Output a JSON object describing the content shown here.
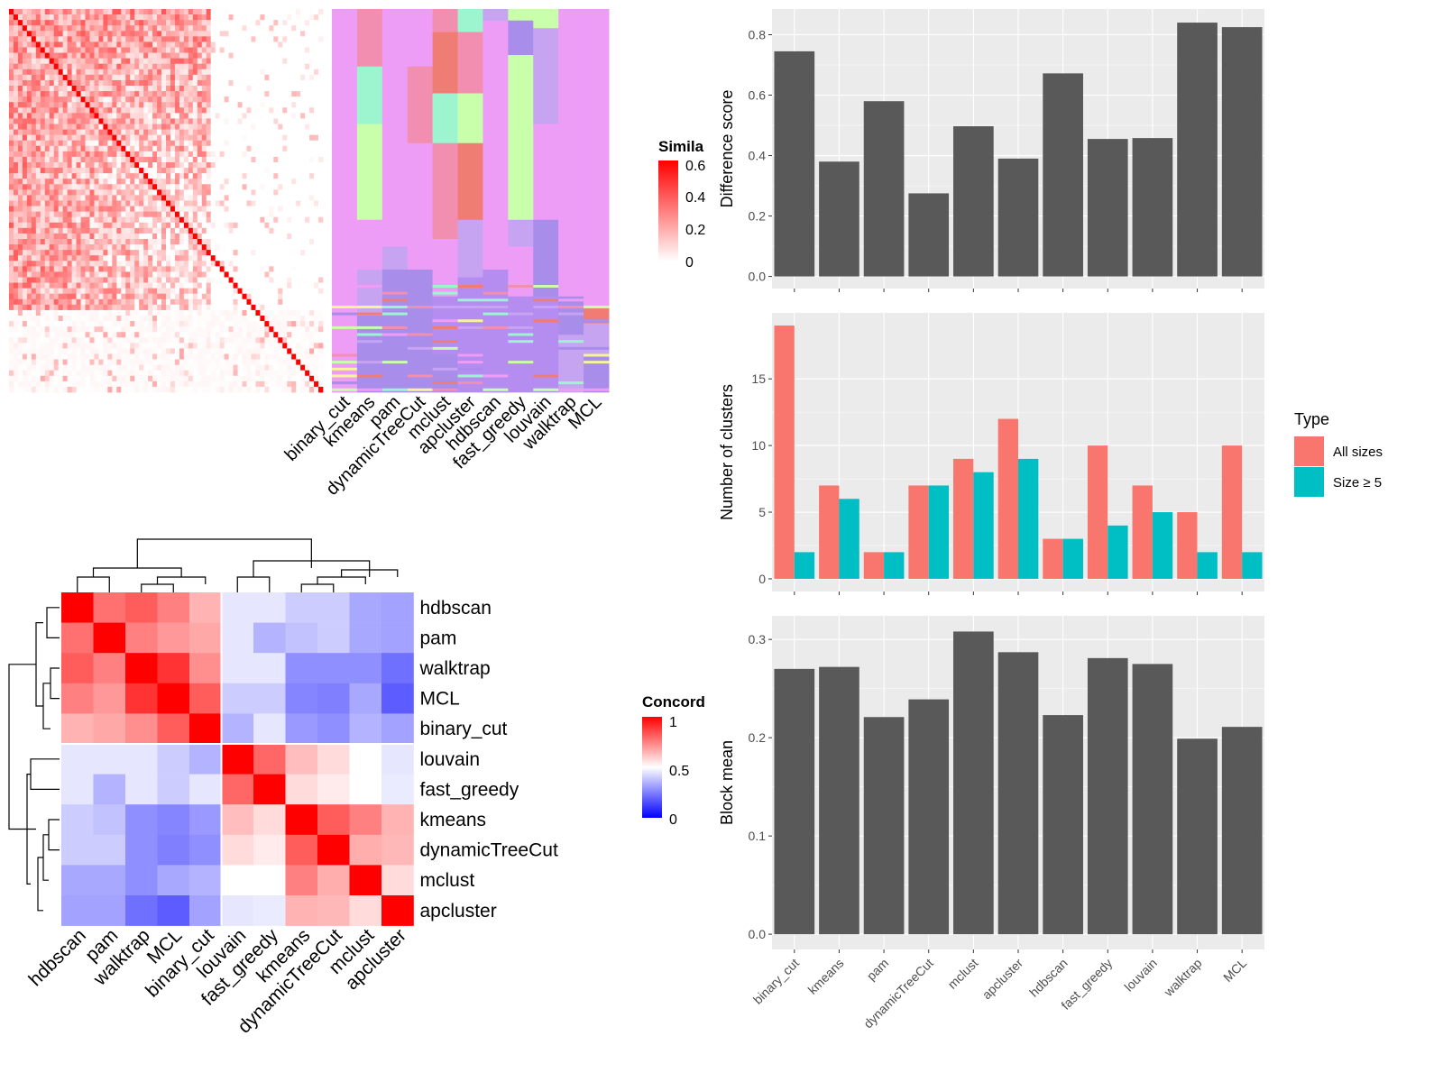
{
  "colors": {
    "panel_bg": "#EBEBEB",
    "grid": "#FFFFFF",
    "bar": "#595959",
    "all_sizes": "#F8766D",
    "size_ge5": "#00BFC4",
    "heat_high": "#FF0000",
    "heat_mid": "#FFFFFF",
    "heat_low": "#0000FF"
  },
  "similarity_legend": {
    "title": "Simila",
    "ticks": [
      "0.6",
      "0.4",
      "0.2",
      "0"
    ]
  },
  "assignment_heatmap": {
    "methods": [
      "binary_cut",
      "kmeans",
      "pam",
      "dynamicTreeCut",
      "mclust",
      "apcluster",
      "hdbscan",
      "fast_greedy",
      "louvain",
      "walktrap",
      "MCL"
    ]
  },
  "concordance_legend": {
    "title": "Concord",
    "ticks": [
      "1",
      "0.5",
      "0"
    ]
  },
  "chart_data": [
    {
      "id": "difference_score",
      "type": "bar",
      "categories": [
        "binary_cut",
        "kmeans",
        "pam",
        "dynamicTreeCut",
        "mclust",
        "apcluster",
        "hdbscan",
        "fast_greedy",
        "louvain",
        "walktrap",
        "MCL"
      ],
      "values": [
        0.745,
        0.38,
        0.58,
        0.275,
        0.497,
        0.39,
        0.672,
        0.455,
        0.458,
        0.84,
        0.825
      ],
      "xlabel": "",
      "ylabel": "Difference score",
      "ylim": [
        -0.04,
        0.885
      ],
      "yticks": [
        "0.0",
        "0.2",
        "0.4",
        "0.6",
        "0.8"
      ],
      "grid": true
    },
    {
      "id": "number_of_clusters",
      "type": "bar",
      "categories": [
        "binary_cut",
        "kmeans",
        "pam",
        "dynamicTreeCut",
        "mclust",
        "apcluster",
        "hdbscan",
        "fast_greedy",
        "louvain",
        "walktrap",
        "MCL"
      ],
      "series": [
        {
          "name": "All sizes",
          "values": [
            19,
            7,
            2,
            7,
            9,
            12,
            3,
            10,
            7,
            5,
            10
          ]
        },
        {
          "name": "Size ≥ 5",
          "values": [
            2,
            6,
            2,
            7,
            8,
            9,
            3,
            4,
            5,
            2,
            2
          ]
        }
      ],
      "xlabel": "",
      "ylabel": "Number of clusters",
      "ylim": [
        -0.95,
        19.95
      ],
      "yticks": [
        "0",
        "5",
        "10",
        "15"
      ],
      "legend": {
        "title": "Type",
        "position": "right"
      },
      "grid": true
    },
    {
      "id": "block_mean",
      "type": "bar",
      "categories": [
        "binary_cut",
        "kmeans",
        "pam",
        "dynamicTreeCut",
        "mclust",
        "apcluster",
        "hdbscan",
        "fast_greedy",
        "louvain",
        "walktrap",
        "MCL"
      ],
      "values": [
        0.27,
        0.272,
        0.221,
        0.239,
        0.308,
        0.287,
        0.223,
        0.281,
        0.275,
        0.199,
        0.211
      ],
      "xlabel": "",
      "ylabel": "Block mean",
      "ylim": [
        -0.0155,
        0.324
      ],
      "yticks": [
        "0.0",
        "0.1",
        "0.2",
        "0.3"
      ],
      "grid": true
    },
    {
      "id": "concordance",
      "type": "heatmap",
      "rows": [
        "hdbscan",
        "pam",
        "walktrap",
        "MCL",
        "binary_cut",
        "louvain",
        "fast_greedy",
        "kmeans",
        "dynamicTreeCut",
        "mclust",
        "apcluster"
      ],
      "columns": [
        "hdbscan",
        "pam",
        "walktrap",
        "MCL",
        "binary_cut",
        "louvain",
        "fast_greedy",
        "kmeans",
        "dynamicTreeCut",
        "mclust",
        "apcluster"
      ],
      "values": [
        [
          1.0,
          0.78,
          0.82,
          0.75,
          0.65,
          0.45,
          0.45,
          0.4,
          0.4,
          0.33,
          0.32
        ],
        [
          0.78,
          1.0,
          0.75,
          0.7,
          0.67,
          0.45,
          0.35,
          0.38,
          0.4,
          0.33,
          0.32
        ],
        [
          0.82,
          0.75,
          1.0,
          0.9,
          0.72,
          0.45,
          0.45,
          0.28,
          0.28,
          0.28,
          0.22
        ],
        [
          0.75,
          0.7,
          0.9,
          1.0,
          0.82,
          0.4,
          0.4,
          0.26,
          0.25,
          0.33,
          0.18
        ],
        [
          0.65,
          0.67,
          0.72,
          0.82,
          1.0,
          0.35,
          0.45,
          0.3,
          0.28,
          0.35,
          0.32
        ],
        [
          0.45,
          0.45,
          0.45,
          0.4,
          0.35,
          1.0,
          0.8,
          0.63,
          0.57,
          0.5,
          0.45
        ],
        [
          0.45,
          0.35,
          0.45,
          0.4,
          0.45,
          0.8,
          1.0,
          0.57,
          0.54,
          0.5,
          0.46
        ],
        [
          0.4,
          0.38,
          0.28,
          0.26,
          0.3,
          0.63,
          0.57,
          1.0,
          0.82,
          0.75,
          0.65
        ],
        [
          0.4,
          0.4,
          0.28,
          0.25,
          0.28,
          0.57,
          0.54,
          0.82,
          1.0,
          0.66,
          0.64
        ],
        [
          0.33,
          0.33,
          0.28,
          0.33,
          0.35,
          0.5,
          0.5,
          0.75,
          0.66,
          1.0,
          0.57
        ],
        [
          0.32,
          0.32,
          0.22,
          0.18,
          0.32,
          0.45,
          0.46,
          0.65,
          0.64,
          0.57,
          1.0
        ]
      ]
    }
  ]
}
